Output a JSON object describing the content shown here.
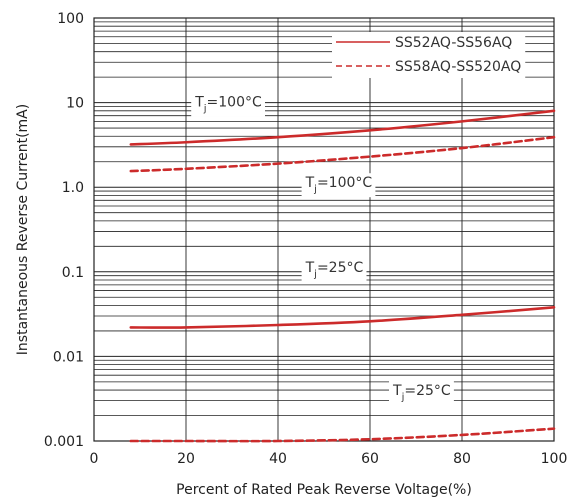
{
  "chart_data": {
    "type": "line",
    "xlabel": "Percent of Rated Peak Reverse Voltage(%)",
    "ylabel": "Instantaneous Reverse Current(mA)",
    "xlim": [
      0,
      100
    ],
    "ylim": [
      0.001,
      100
    ],
    "yscale": "log",
    "x_ticks": [
      0,
      20,
      40,
      60,
      80,
      100
    ],
    "x_tick_labels": [
      "0",
      "20",
      "40",
      "60",
      "80",
      "100"
    ],
    "y_ticks": [
      0.001,
      0.01,
      0.1,
      1,
      10,
      100
    ],
    "y_tick_labels": [
      "0.001",
      "0.01",
      "0.1",
      "1.0",
      "10",
      "100"
    ],
    "grid": true,
    "legend": {
      "placement": "top-right",
      "entries": [
        {
          "label": "SS52AQ-SS56AQ",
          "style": "solid"
        },
        {
          "label": "SS58AQ-SS520AQ",
          "style": "dashed"
        }
      ]
    },
    "series": [
      {
        "style": "solid",
        "color": "#cc2b2b",
        "x": [
          8,
          20,
          40,
          60,
          80,
          100
        ],
        "y": [
          3.2,
          3.4,
          3.9,
          4.7,
          6.0,
          8.0
        ]
      },
      {
        "style": "dashed",
        "color": "#cc2b2b",
        "x": [
          8,
          20,
          40,
          60,
          80,
          100
        ],
        "y": [
          1.55,
          1.65,
          1.9,
          2.3,
          2.9,
          3.9
        ]
      },
      {
        "style": "solid",
        "color": "#cc2b2b",
        "x": [
          8,
          20,
          40,
          60,
          80,
          100
        ],
        "y": [
          0.022,
          0.022,
          0.0235,
          0.026,
          0.031,
          0.038
        ]
      },
      {
        "style": "dashed",
        "color": "#cc2b2b",
        "x": [
          8,
          20,
          40,
          60,
          80,
          100
        ],
        "y": [
          0.001,
          0.001,
          0.001,
          0.00105,
          0.00118,
          0.0014
        ]
      }
    ],
    "annotations": [
      {
        "label": "T",
        "sub": "j",
        "rest": "=100°C",
        "x": 22,
        "y": 9.0
      },
      {
        "label": "T",
        "sub": "j",
        "rest": "=100°C",
        "x": 46,
        "y": 1.0
      },
      {
        "label": "T",
        "sub": "j",
        "rest": "=25°C",
        "x": 46,
        "y": 0.1
      },
      {
        "label": "T",
        "sub": "j",
        "rest": "=25°C",
        "x": 65,
        "y": 0.0035
      }
    ]
  }
}
